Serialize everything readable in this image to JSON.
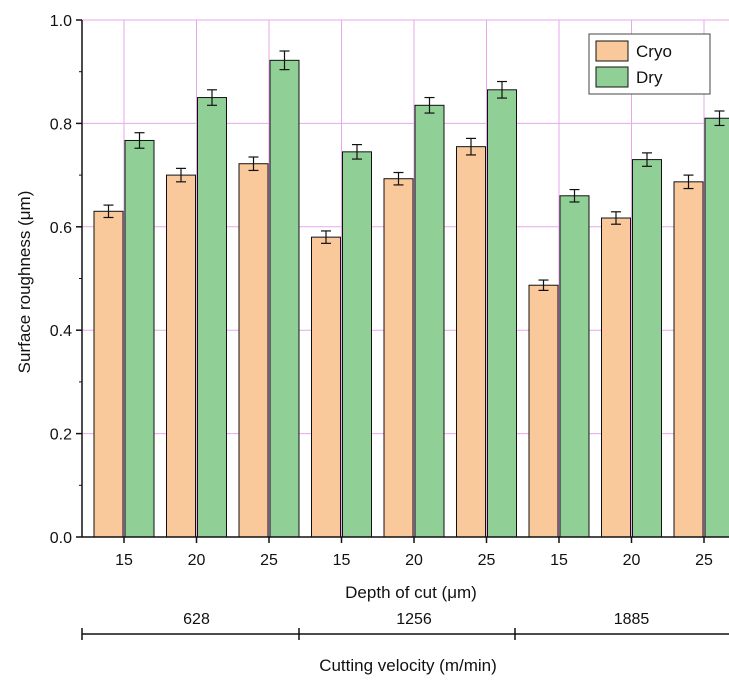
{
  "chart_data": {
    "type": "bar",
    "ylabel": "Surface roughness (μm)",
    "xlabel": "Depth of cut (μm)",
    "group_axis_label": "Cutting velocity (m/min)",
    "ylim": [
      0,
      1.0
    ],
    "yticks": [
      "0.0",
      "0.2",
      "0.4",
      "0.6",
      "0.8",
      "1.0"
    ],
    "ytick_values": [
      0,
      0.2,
      0.4,
      0.6,
      0.8,
      1.0
    ],
    "categories": [
      "15",
      "20",
      "25",
      "15",
      "20",
      "25",
      "15",
      "20",
      "25"
    ],
    "groups": [
      {
        "label": "628",
        "span": [
          0,
          2
        ]
      },
      {
        "label": "1256",
        "span": [
          3,
          5
        ]
      },
      {
        "label": "1885",
        "span": [
          6,
          8
        ]
      }
    ],
    "series": [
      {
        "name": "Cryo",
        "color": "#f9c89b",
        "values": [
          0.63,
          0.7,
          0.722,
          0.58,
          0.693,
          0.755,
          0.487,
          0.617,
          0.687
        ],
        "errors": [
          0.012,
          0.013,
          0.013,
          0.012,
          0.012,
          0.016,
          0.01,
          0.012,
          0.013
        ]
      },
      {
        "name": "Dry",
        "color": "#90d096",
        "values": [
          0.767,
          0.85,
          0.922,
          0.745,
          0.835,
          0.865,
          0.66,
          0.73,
          0.81
        ],
        "errors": [
          0.015,
          0.015,
          0.018,
          0.014,
          0.015,
          0.016,
          0.012,
          0.013,
          0.014
        ]
      }
    ],
    "grid": true,
    "grid_color": "#e8a8ea",
    "legend_position": "top-right"
  }
}
